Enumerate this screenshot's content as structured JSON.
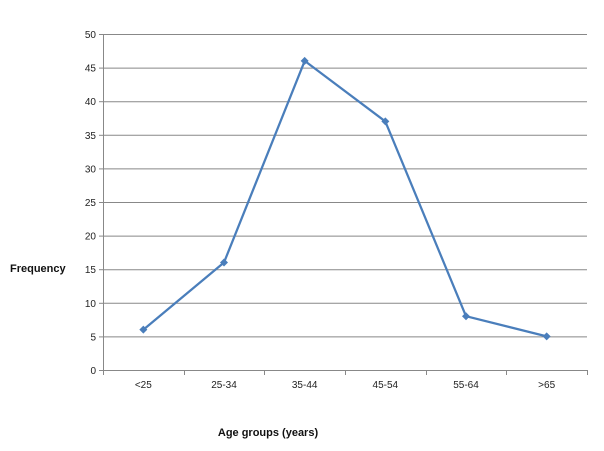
{
  "chart_data": {
    "type": "line",
    "categories": [
      "<25",
      "25-34",
      "35-44",
      "45-54",
      "55-64",
      ">65"
    ],
    "series": [
      {
        "values": [
          6,
          16,
          46,
          37,
          8,
          5
        ],
        "color": "#4a7ebb"
      }
    ],
    "xlabel": "Age groups (years)",
    "ylabel": "Frequency",
    "ylim": [
      0,
      50
    ],
    "yticks": [
      "0",
      "5",
      "10",
      "15",
      "20",
      "25",
      "30",
      "35",
      "40",
      "45",
      "50"
    ],
    "grid": true,
    "marker": "diamond",
    "gridline_color": "#888888",
    "axis_color": "#888888"
  }
}
